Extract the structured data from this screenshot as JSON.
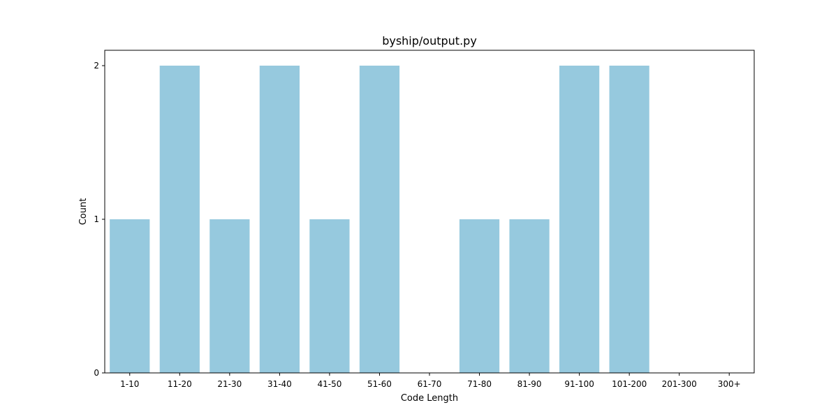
{
  "chart_data": {
    "type": "bar",
    "title": "byship/output.py",
    "xlabel": "Code Length",
    "ylabel": "Count",
    "categories": [
      "1-10",
      "11-20",
      "21-30",
      "31-40",
      "41-50",
      "51-60",
      "61-70",
      "71-80",
      "81-90",
      "91-100",
      "101-200",
      "201-300",
      "300+"
    ],
    "values": [
      1,
      2,
      1,
      2,
      1,
      2,
      0,
      1,
      1,
      2,
      2,
      0,
      0
    ],
    "ylim": [
      0,
      2.1
    ],
    "yticks": [
      "0",
      "1",
      "2"
    ],
    "grid": false,
    "colors": {
      "bar": "#96c9de"
    }
  }
}
